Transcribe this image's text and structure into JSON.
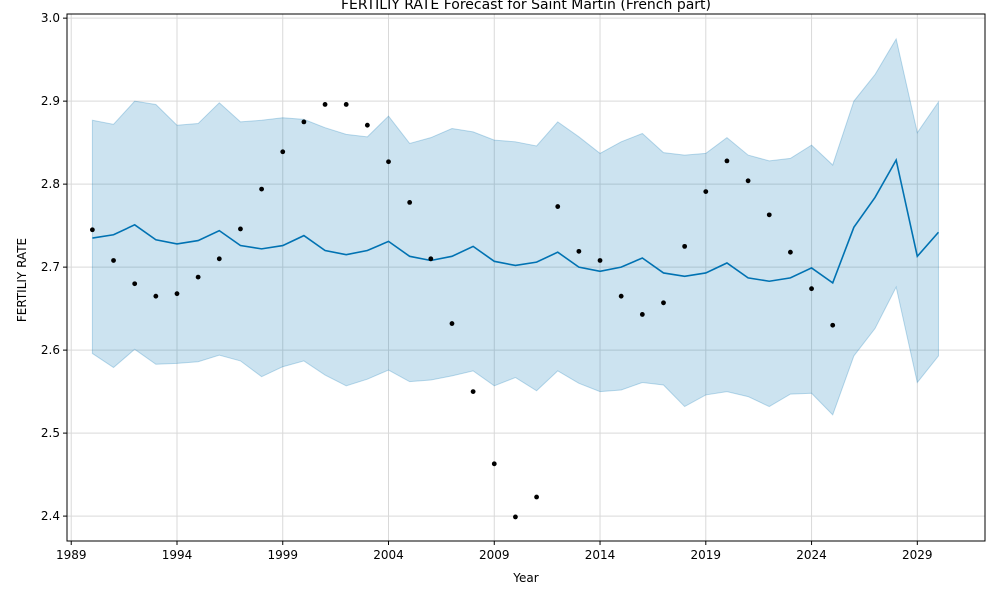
{
  "chart_data": {
    "type": "line",
    "title": "FERTILIY RATE Forecast for Saint Martin (French part)",
    "xlabel": "Year",
    "ylabel": "FERTILIY RATE",
    "xlim": [
      1988.8,
      2032.2
    ],
    "ylim": [
      2.37,
      3.005
    ],
    "x_ticks": [
      1989,
      1994,
      1999,
      2004,
      2009,
      2014,
      2019,
      2024,
      2029
    ],
    "y_ticks": [
      2.4,
      2.5,
      2.6,
      2.7,
      2.8,
      2.9,
      3.0
    ],
    "y_tick_labels": [
      "2.4",
      "2.5",
      "2.6",
      "2.7",
      "2.8",
      "2.9",
      "3.0"
    ],
    "grid": true,
    "colors": {
      "forecast": "#0072B2",
      "band": "#0072B2",
      "actual": "#000000",
      "grid": "#d9d9d9"
    },
    "x": [
      1990,
      1991,
      1992,
      1993,
      1994,
      1995,
      1996,
      1997,
      1998,
      1999,
      2000,
      2001,
      2002,
      2003,
      2004,
      2005,
      2006,
      2007,
      2008,
      2009,
      2010,
      2011,
      2012,
      2013,
      2014,
      2015,
      2016,
      2017,
      2018,
      2019,
      2020,
      2021,
      2022,
      2023,
      2024,
      2025,
      2026,
      2027,
      2028,
      2029,
      2030
    ],
    "series": [
      {
        "kind": "actual",
        "x": [
          1990,
          1991,
          1992,
          1993,
          1994,
          1995,
          1996,
          1997,
          1998,
          1999,
          2000,
          2001,
          2002,
          2003,
          2004,
          2005,
          2006,
          2007,
          2008,
          2009,
          2010,
          2011,
          2012,
          2013,
          2014,
          2015,
          2016,
          2017,
          2018,
          2019,
          2020,
          2021,
          2022,
          2023,
          2024,
          2025
        ],
        "values": [
          2.745,
          2.708,
          2.68,
          2.665,
          2.668,
          2.688,
          2.71,
          2.746,
          2.794,
          2.839,
          2.875,
          2.896,
          2.896,
          2.871,
          2.827,
          2.778,
          2.71,
          2.632,
          2.55,
          2.463,
          2.399,
          2.423,
          2.773,
          2.719,
          2.708,
          2.665,
          2.643,
          2.657,
          2.725,
          2.791,
          2.828,
          2.804,
          2.763,
          2.718,
          2.674,
          2.63
        ]
      },
      {
        "kind": "forecast",
        "values": [
          2.735,
          2.739,
          2.751,
          2.733,
          2.728,
          2.732,
          2.744,
          2.726,
          2.722,
          2.726,
          2.738,
          2.72,
          2.715,
          2.72,
          2.731,
          2.713,
          2.708,
          2.713,
          2.725,
          2.707,
          2.702,
          2.706,
          2.718,
          2.7,
          2.695,
          2.7,
          2.711,
          2.693,
          2.689,
          2.693,
          2.705,
          2.687,
          2.683,
          2.687,
          2.699,
          2.681,
          2.748,
          2.784,
          2.829,
          2.713,
          2.742
        ]
      },
      {
        "kind": "upper",
        "values": [
          2.877,
          2.872,
          2.9,
          2.896,
          2.871,
          2.873,
          2.898,
          2.875,
          2.877,
          2.88,
          2.878,
          2.868,
          2.86,
          2.857,
          2.882,
          2.849,
          2.856,
          2.867,
          2.863,
          2.853,
          2.851,
          2.846,
          2.875,
          2.857,
          2.837,
          2.851,
          2.861,
          2.838,
          2.835,
          2.837,
          2.856,
          2.835,
          2.828,
          2.831,
          2.847,
          2.823,
          2.9,
          2.932,
          2.975,
          2.862,
          2.899
        ]
      },
      {
        "kind": "lower",
        "values": [
          2.596,
          2.579,
          2.601,
          2.583,
          2.584,
          2.586,
          2.594,
          2.587,
          2.568,
          2.58,
          2.587,
          2.57,
          2.557,
          2.565,
          2.576,
          2.562,
          2.564,
          2.569,
          2.575,
          2.557,
          2.567,
          2.551,
          2.575,
          2.56,
          2.55,
          2.552,
          2.561,
          2.558,
          2.532,
          2.546,
          2.55,
          2.544,
          2.532,
          2.547,
          2.548,
          2.522,
          2.593,
          2.626,
          2.676,
          2.561,
          2.593
        ]
      }
    ]
  }
}
